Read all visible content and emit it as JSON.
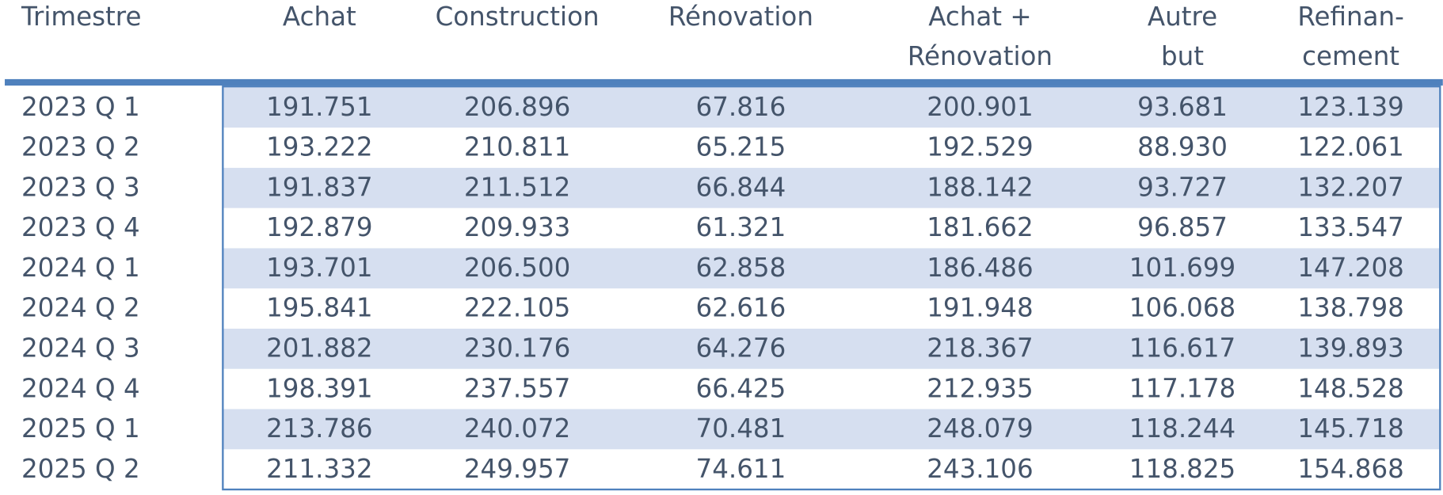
{
  "table": {
    "header": [
      [
        "Trimestre"
      ],
      [
        "Achat"
      ],
      [
        "Construction"
      ],
      [
        "Rénovation"
      ],
      [
        "Achat +",
        "Rénovation"
      ],
      [
        "Autre",
        "but"
      ],
      [
        "Refinan-",
        "cement"
      ]
    ],
    "rows": [
      [
        "2023 Q 1",
        "191.751",
        "206.896",
        "67.816",
        "200.901",
        "93.681",
        "123.139"
      ],
      [
        "2023 Q 2",
        "193.222",
        "210.811",
        "65.215",
        "192.529",
        "88.930",
        "122.061"
      ],
      [
        "2023 Q 3",
        "191.837",
        "211.512",
        "66.844",
        "188.142",
        "93.727",
        "132.207"
      ],
      [
        "2023 Q 4",
        "192.879",
        "209.933",
        "61.321",
        "181.662",
        "96.857",
        "133.547"
      ],
      [
        "2024 Q 1",
        "193.701",
        "206.500",
        "62.858",
        "186.486",
        "101.699",
        "147.208"
      ],
      [
        "2024 Q 2",
        "195.841",
        "222.105",
        "62.616",
        "191.948",
        "106.068",
        "138.798"
      ],
      [
        "2024 Q 3",
        "201.882",
        "230.176",
        "64.276",
        "218.367",
        "116.617",
        "139.893"
      ],
      [
        "2024 Q 4",
        "198.391",
        "237.557",
        "66.425",
        "212.935",
        "117.178",
        "148.528"
      ],
      [
        "2025 Q 1",
        "213.786",
        "240.072",
        "70.481",
        "248.079",
        "118.244",
        "145.718"
      ],
      [
        "2025 Q 2",
        "211.332",
        "249.957",
        "74.611",
        "243.106",
        "118.825",
        "154.868"
      ]
    ]
  }
}
